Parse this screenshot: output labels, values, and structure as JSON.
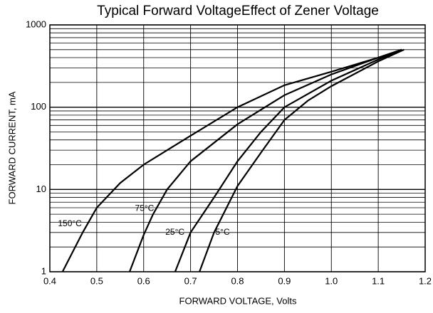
{
  "chart_data": {
    "type": "line",
    "title": "Typical Forward VoltageEffect of Zener Voltage",
    "x_label": "FORWARD  VOLTAGE, Volts",
    "y_label": "FORWARD CURRENT, mA",
    "xlim": [
      0.4,
      1.2
    ],
    "xticks": [
      0.4,
      0.5,
      0.6,
      0.7,
      0.8,
      0.9,
      {
        "value": 1,
        "label": "1.0"
      },
      1.1,
      1.2
    ],
    "ylim": [
      1,
      1000
    ],
    "yticks": [
      1,
      10,
      100,
      1000
    ],
    "y_minor_ticks": [
      2,
      3,
      4,
      5,
      6,
      7,
      8,
      9,
      20,
      30,
      40,
      50,
      60,
      70,
      80,
      90,
      200,
      300,
      400,
      500,
      600,
      700,
      800,
      900
    ],
    "log_y": true,
    "grid": true,
    "series": [
      {
        "name": "150°C",
        "color": "#000000",
        "x": [
          0.427,
          0.47,
          0.5,
          0.55,
          0.6,
          0.7,
          0.8,
          0.9,
          1.0,
          1.1,
          1.15
        ],
        "values": [
          1,
          3,
          6,
          12,
          20,
          45,
          100,
          185,
          270,
          400,
          500
        ]
      },
      {
        "name": "75°C",
        "color": "#000000",
        "x": [
          0.57,
          0.6,
          0.62,
          0.65,
          0.7,
          0.8,
          0.9,
          1.0,
          1.1,
          1.15
        ],
        "values": [
          1,
          2.8,
          5,
          10,
          22,
          62,
          140,
          250,
          400,
          500
        ]
      },
      {
        "name": "25°C",
        "color": "#000000",
        "x": [
          0.667,
          0.7,
          0.75,
          0.8,
          0.85,
          0.9,
          1.0,
          1.1,
          1.15
        ],
        "values": [
          1,
          3,
          8,
          22,
          50,
          100,
          210,
          380,
          500
        ]
      },
      {
        "name": "5°C",
        "color": "#000000",
        "x": [
          0.719,
          0.75,
          0.8,
          0.85,
          0.9,
          0.95,
          1.0,
          1.1,
          1.155
        ],
        "values": [
          1,
          3,
          11,
          28,
          70,
          120,
          180,
          360,
          500
        ]
      }
    ]
  }
}
